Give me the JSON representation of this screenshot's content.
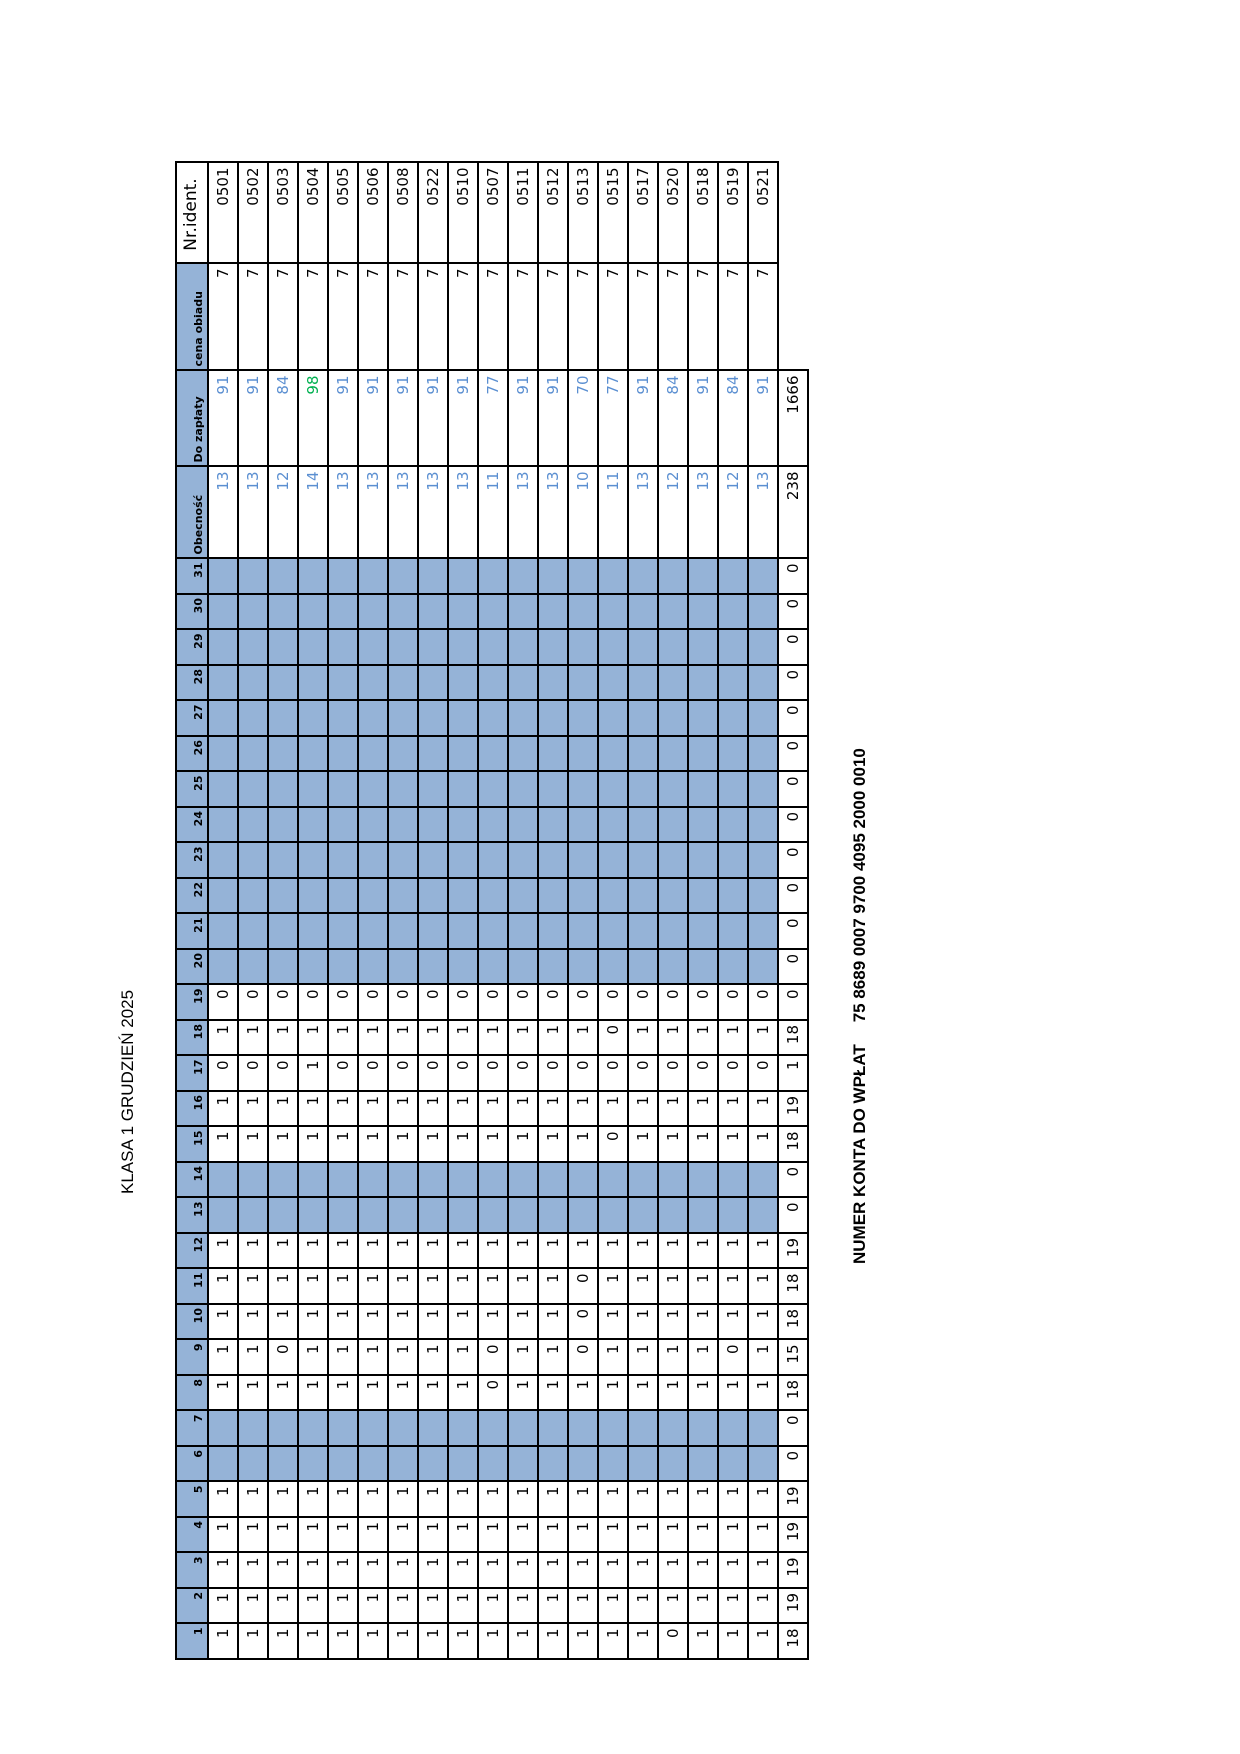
{
  "title": "KLASA 1 GRUDZIEŃ 2025",
  "footer": {
    "label": "NUMER KONTA  DO WPŁAT",
    "account": "75 8689 0007 9700 4095 2000 0010"
  },
  "colors": {
    "header_fill": "#95b3d7",
    "value_blue": "#5b8fd1",
    "value_green": "#00b050"
  },
  "headers": {
    "days": [
      "1",
      "2",
      "3",
      "4",
      "5",
      "6",
      "7",
      "8",
      "9",
      "10",
      "11",
      "12",
      "13",
      "14",
      "15",
      "16",
      "17",
      "18",
      "19",
      "20",
      "21",
      "22",
      "23",
      "24",
      "25",
      "26",
      "27",
      "28",
      "29",
      "30",
      "31"
    ],
    "obecnosc": "Obecność",
    "do_zaplaty": "Do zapłaty",
    "cena": "cena obiadu",
    "nr": "Nr.ident."
  },
  "rows": [
    {
      "days": [
        1,
        1,
        1,
        1,
        1,
        "",
        "",
        1,
        1,
        1,
        1,
        1,
        "",
        "",
        1,
        1,
        0,
        1,
        0,
        "",
        "",
        "",
        "",
        "",
        "",
        "",
        "",
        "",
        "",
        "",
        ""
      ],
      "obecnosc": "13",
      "do_zaplaty": "91",
      "cena": "7",
      "id": "0501"
    },
    {
      "days": [
        1,
        1,
        1,
        1,
        1,
        "",
        "",
        1,
        1,
        1,
        1,
        1,
        "",
        "",
        1,
        1,
        0,
        1,
        0,
        "",
        "",
        "",
        "",
        "",
        "",
        "",
        "",
        "",
        "",
        "",
        ""
      ],
      "obecnosc": "13",
      "do_zaplaty": "91",
      "cena": "7",
      "id": "0502"
    },
    {
      "days": [
        1,
        1,
        1,
        1,
        1,
        "",
        "",
        1,
        0,
        1,
        1,
        1,
        "",
        "",
        1,
        1,
        0,
        1,
        0,
        "",
        "",
        "",
        "",
        "",
        "",
        "",
        "",
        "",
        "",
        "",
        ""
      ],
      "obecnosc": "12",
      "do_zaplaty": "84",
      "cena": "7",
      "id": "0503"
    },
    {
      "days": [
        1,
        1,
        1,
        1,
        1,
        "",
        "",
        1,
        1,
        1,
        1,
        1,
        "",
        "",
        1,
        1,
        1,
        1,
        0,
        "",
        "",
        "",
        "",
        "",
        "",
        "",
        "",
        "",
        "",
        "",
        ""
      ],
      "obecnosc": "14",
      "do_zaplaty": "98",
      "cena": "7",
      "id": "0504",
      "highlight": "green"
    },
    {
      "days": [
        1,
        1,
        1,
        1,
        1,
        "",
        "",
        1,
        1,
        1,
        1,
        1,
        "",
        "",
        1,
        1,
        0,
        1,
        0,
        "",
        "",
        "",
        "",
        "",
        "",
        "",
        "",
        "",
        "",
        "",
        ""
      ],
      "obecnosc": "13",
      "do_zaplaty": "91",
      "cena": "7",
      "id": "0505"
    },
    {
      "days": [
        1,
        1,
        1,
        1,
        1,
        "",
        "",
        1,
        1,
        1,
        1,
        1,
        "",
        "",
        1,
        1,
        0,
        1,
        0,
        "",
        "",
        "",
        "",
        "",
        "",
        "",
        "",
        "",
        "",
        "",
        ""
      ],
      "obecnosc": "13",
      "do_zaplaty": "91",
      "cena": "7",
      "id": "0506"
    },
    {
      "days": [
        1,
        1,
        1,
        1,
        1,
        "",
        "",
        1,
        1,
        1,
        1,
        1,
        "",
        "",
        1,
        1,
        0,
        1,
        0,
        "",
        "",
        "",
        "",
        "",
        "",
        "",
        "",
        "",
        "",
        "",
        ""
      ],
      "obecnosc": "13",
      "do_zaplaty": "91",
      "cena": "7",
      "id": "0508"
    },
    {
      "days": [
        1,
        1,
        1,
        1,
        1,
        "",
        "",
        1,
        1,
        1,
        1,
        1,
        "",
        "",
        1,
        1,
        0,
        1,
        0,
        "",
        "",
        "",
        "",
        "",
        "",
        "",
        "",
        "",
        "",
        "",
        ""
      ],
      "obecnosc": "13",
      "do_zaplaty": "91",
      "cena": "7",
      "id": "0522"
    },
    {
      "days": [
        1,
        1,
        1,
        1,
        1,
        "",
        "",
        1,
        1,
        1,
        1,
        1,
        "",
        "",
        1,
        1,
        0,
        1,
        0,
        "",
        "",
        "",
        "",
        "",
        "",
        "",
        "",
        "",
        "",
        "",
        ""
      ],
      "obecnosc": "13",
      "do_zaplaty": "91",
      "cena": "7",
      "id": "0510"
    },
    {
      "days": [
        1,
        1,
        1,
        1,
        1,
        "",
        "",
        0,
        0,
        1,
        1,
        1,
        "",
        "",
        1,
        1,
        0,
        1,
        0,
        "",
        "",
        "",
        "",
        "",
        "",
        "",
        "",
        "",
        "",
        "",
        ""
      ],
      "obecnosc": "11",
      "do_zaplaty": "77",
      "cena": "7",
      "id": "0507"
    },
    {
      "days": [
        1,
        1,
        1,
        1,
        1,
        "",
        "",
        1,
        1,
        1,
        1,
        1,
        "",
        "",
        1,
        1,
        0,
        1,
        0,
        "",
        "",
        "",
        "",
        "",
        "",
        "",
        "",
        "",
        "",
        "",
        ""
      ],
      "obecnosc": "13",
      "do_zaplaty": "91",
      "cena": "7",
      "id": "0511"
    },
    {
      "days": [
        1,
        1,
        1,
        1,
        1,
        "",
        "",
        1,
        1,
        1,
        1,
        1,
        "",
        "",
        1,
        1,
        0,
        1,
        0,
        "",
        "",
        "",
        "",
        "",
        "",
        "",
        "",
        "",
        "",
        "",
        ""
      ],
      "obecnosc": "13",
      "do_zaplaty": "91",
      "cena": "7",
      "id": "0512"
    },
    {
      "days": [
        1,
        1,
        1,
        1,
        1,
        "",
        "",
        1,
        0,
        0,
        0,
        1,
        "",
        "",
        1,
        1,
        0,
        1,
        0,
        "",
        "",
        "",
        "",
        "",
        "",
        "",
        "",
        "",
        "",
        "",
        ""
      ],
      "obecnosc": "10",
      "do_zaplaty": "70",
      "cena": "7",
      "id": "0513"
    },
    {
      "days": [
        1,
        1,
        1,
        1,
        1,
        "",
        "",
        1,
        1,
        1,
        1,
        1,
        "",
        "",
        0,
        1,
        0,
        0,
        0,
        "",
        "",
        "",
        "",
        "",
        "",
        "",
        "",
        "",
        "",
        "",
        ""
      ],
      "obecnosc": "11",
      "do_zaplaty": "77",
      "cena": "7",
      "id": "0515"
    },
    {
      "days": [
        1,
        1,
        1,
        1,
        1,
        "",
        "",
        1,
        1,
        1,
        1,
        1,
        "",
        "",
        1,
        1,
        0,
        1,
        0,
        "",
        "",
        "",
        "",
        "",
        "",
        "",
        "",
        "",
        "",
        "",
        ""
      ],
      "obecnosc": "13",
      "do_zaplaty": "91",
      "cena": "7",
      "id": "0517"
    },
    {
      "days": [
        0,
        1,
        1,
        1,
        1,
        "",
        "",
        1,
        1,
        1,
        1,
        1,
        "",
        "",
        1,
        1,
        0,
        1,
        0,
        "",
        "",
        "",
        "",
        "",
        "",
        "",
        "",
        "",
        "",
        "",
        ""
      ],
      "obecnosc": "12",
      "do_zaplaty": "84",
      "cena": "7",
      "id": "0520"
    },
    {
      "days": [
        1,
        1,
        1,
        1,
        1,
        "",
        "",
        1,
        1,
        1,
        1,
        1,
        "",
        "",
        1,
        1,
        0,
        1,
        0,
        "",
        "",
        "",
        "",
        "",
        "",
        "",
        "",
        "",
        "",
        "",
        ""
      ],
      "obecnosc": "13",
      "do_zaplaty": "91",
      "cena": "7",
      "id": "0518"
    },
    {
      "days": [
        1,
        1,
        1,
        1,
        1,
        "",
        "",
        1,
        0,
        1,
        1,
        1,
        "",
        "",
        1,
        1,
        0,
        1,
        0,
        "",
        "",
        "",
        "",
        "",
        "",
        "",
        "",
        "",
        "",
        "",
        ""
      ],
      "obecnosc": "12",
      "do_zaplaty": "84",
      "cena": "7",
      "id": "0519"
    },
    {
      "days": [
        1,
        1,
        1,
        1,
        1,
        "",
        "",
        1,
        1,
        1,
        1,
        1,
        "",
        "",
        1,
        1,
        0,
        1,
        0,
        "",
        "",
        "",
        "",
        "",
        "",
        "",
        "",
        "",
        "",
        "",
        ""
      ],
      "obecnosc": "13",
      "do_zaplaty": "91",
      "cena": "7",
      "id": "0521"
    }
  ],
  "totals": {
    "days": [
      18,
      19,
      19,
      19,
      19,
      0,
      0,
      18,
      15,
      18,
      18,
      19,
      0,
      0,
      18,
      19,
      1,
      18,
      0,
      0,
      0,
      0,
      0,
      0,
      0,
      0,
      0,
      0,
      0,
      0,
      0
    ],
    "obecnosc": "238",
    "do_zaplaty": "1666"
  }
}
